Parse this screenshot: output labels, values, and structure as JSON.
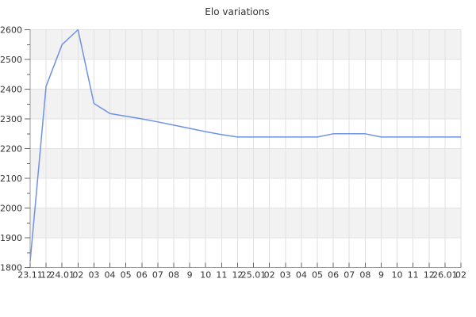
{
  "chart_data": {
    "type": "line",
    "title": "Elo variations",
    "x_tick_labels": [
      "23.11",
      "12",
      "24.01",
      "02",
      "03",
      "04",
      "05",
      "06",
      "07",
      "08",
      "9",
      "10",
      "11",
      "12",
      "25.01",
      "02",
      "03",
      "04",
      "05",
      "06",
      "07",
      "08",
      "9",
      "10",
      "11",
      "12",
      "26.01",
      "02"
    ],
    "y_tick_labels": [
      "1800",
      "1900",
      "2000",
      "2100",
      "2200",
      "2300",
      "2400",
      "2500",
      "2600"
    ],
    "series": [
      {
        "name": "Elo",
        "values": [
          1820,
          2410,
          2550,
          2600,
          2352,
          2318,
          2309,
          2300,
          2290,
          2279,
          2268,
          2257,
          2247,
          2239,
          2239,
          2239,
          2239,
          2239,
          2239,
          2250,
          2250,
          2250,
          2239,
          2239,
          2239,
          2239,
          2239,
          2239
        ]
      }
    ],
    "ylim": [
      1800,
      2600
    ],
    "y_tick_step": 100,
    "y_minor_tick_step": 50,
    "grid": true,
    "alternating_row_bands": true,
    "legend": "none",
    "colors": {
      "line": "#6f92e3",
      "band": "#f2f2f2",
      "grid": "#e1e1e1",
      "axis": "#999999",
      "tick": "#666666",
      "label": "#333333",
      "title": "#333333"
    }
  }
}
